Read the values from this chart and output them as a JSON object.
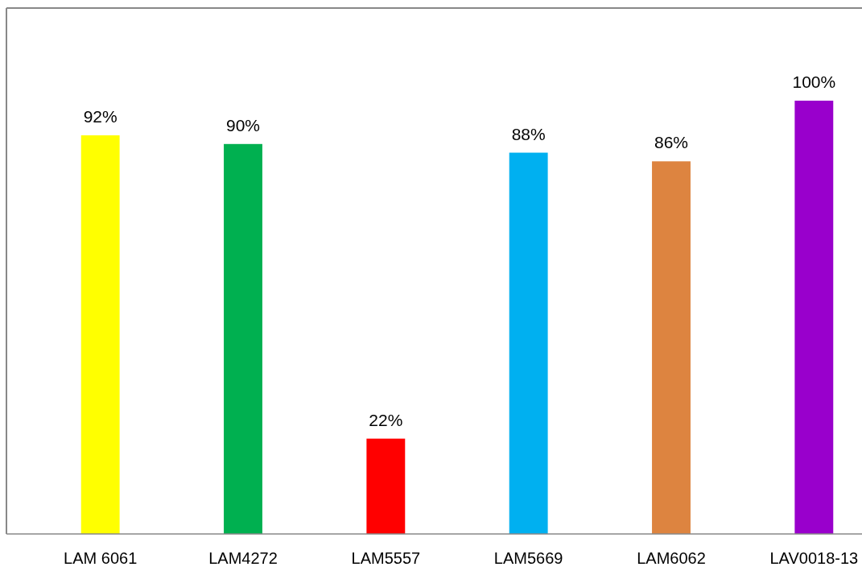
{
  "chart_data": {
    "type": "bar",
    "categories": [
      "LAM 6061",
      "LAM4272",
      "LAM5557",
      "LAM5669",
      "LAM6062",
      "LAV0018-13"
    ],
    "values": [
      92,
      90,
      22,
      88,
      86,
      100
    ],
    "colors": [
      "#ffff00",
      "#00b050",
      "#ff0000",
      "#00b0f0",
      "#dd8440",
      "#9900cc"
    ],
    "value_labels": [
      "92%",
      "90%",
      "22%",
      "88%",
      "86%",
      "100%"
    ]
  }
}
